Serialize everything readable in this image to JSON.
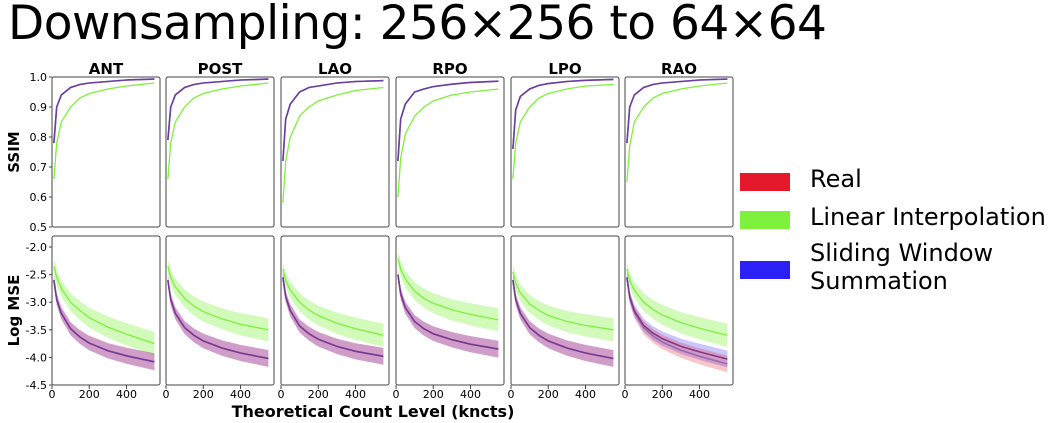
{
  "title": "Downsampling: 256×256 to 64×64",
  "colors": {
    "Real": "#e41a2c",
    "Linear Interpolation": "#7df13c",
    "Sliding Window Summation": "#2b20f5",
    "Overlap": "#6a3fa0"
  },
  "legend": [
    {
      "label_lines": [
        "Real"
      ],
      "color": "#e41a2c"
    },
    {
      "label_lines": [
        "Linear Interpolation"
      ],
      "color": "#7df13c"
    },
    {
      "label_lines": [
        "Sliding Window",
        "Summation"
      ],
      "color": "#2b20f5"
    }
  ],
  "chart_data": {
    "type": "line",
    "xlabel": "Theoretical Count Level (kncts)",
    "panels": [
      "ANT",
      "POST",
      "LAO",
      "RPO",
      "LPO",
      "RAO"
    ],
    "rows": [
      {
        "ylabel": "SSIM",
        "ylim": [
          0.5,
          1.0
        ],
        "yticks": [
          "0.5",
          "0.6",
          "0.7",
          "0.8",
          "0.9",
          "1.0"
        ],
        "x": [
          10,
          25,
          50,
          100,
          150,
          200,
          300,
          400,
          550
        ],
        "series": [
          {
            "name": "Linear Interpolation",
            "values_by_panel": {
              "ANT": [
                0.66,
                0.78,
                0.85,
                0.9,
                0.93,
                0.945,
                0.96,
                0.97,
                0.98
              ],
              "POST": [
                0.66,
                0.78,
                0.85,
                0.9,
                0.93,
                0.945,
                0.96,
                0.97,
                0.98
              ],
              "LAO": [
                0.58,
                0.72,
                0.8,
                0.87,
                0.9,
                0.92,
                0.94,
                0.955,
                0.965
              ],
              "RPO": [
                0.6,
                0.73,
                0.81,
                0.87,
                0.9,
                0.92,
                0.94,
                0.95,
                0.96
              ],
              "LPO": [
                0.66,
                0.78,
                0.85,
                0.9,
                0.93,
                0.945,
                0.96,
                0.97,
                0.975
              ],
              "RAO": [
                0.65,
                0.77,
                0.85,
                0.9,
                0.93,
                0.945,
                0.96,
                0.97,
                0.98
              ]
            }
          },
          {
            "name": "Sliding Window Summation",
            "values_by_panel": {
              "ANT": [
                0.78,
                0.9,
                0.94,
                0.965,
                0.975,
                0.98,
                0.985,
                0.99,
                0.993
              ],
              "POST": [
                0.79,
                0.9,
                0.94,
                0.965,
                0.975,
                0.98,
                0.985,
                0.99,
                0.993
              ],
              "LAO": [
                0.72,
                0.86,
                0.91,
                0.95,
                0.965,
                0.97,
                0.98,
                0.985,
                0.988
              ],
              "RPO": [
                0.72,
                0.86,
                0.91,
                0.95,
                0.96,
                0.968,
                0.976,
                0.982,
                0.986
              ],
              "LPO": [
                0.76,
                0.89,
                0.935,
                0.96,
                0.972,
                0.978,
                0.985,
                0.989,
                0.992
              ],
              "RAO": [
                0.78,
                0.9,
                0.94,
                0.965,
                0.975,
                0.98,
                0.985,
                0.99,
                0.993
              ]
            }
          },
          {
            "name": "Real",
            "values_by_panel": {
              "ANT": [
                0.78,
                0.9,
                0.94,
                0.965,
                0.975,
                0.98,
                0.985,
                0.99,
                0.993
              ],
              "POST": [
                0.79,
                0.9,
                0.94,
                0.965,
                0.975,
                0.98,
                0.985,
                0.99,
                0.993
              ],
              "LAO": [
                0.72,
                0.86,
                0.91,
                0.95,
                0.965,
                0.97,
                0.98,
                0.985,
                0.988
              ],
              "RPO": [
                0.72,
                0.86,
                0.91,
                0.95,
                0.96,
                0.968,
                0.976,
                0.982,
                0.986
              ],
              "LPO": [
                0.76,
                0.89,
                0.935,
                0.96,
                0.972,
                0.978,
                0.985,
                0.989,
                0.992
              ],
              "RAO": [
                0.78,
                0.9,
                0.94,
                0.965,
                0.975,
                0.98,
                0.985,
                0.99,
                0.993
              ]
            }
          }
        ]
      },
      {
        "ylabel": "Log MSE",
        "ylim": [
          -4.5,
          -1.8
        ],
        "yticks": [
          "-4.5",
          "-4.0",
          "-3.5",
          "-3.0",
          "-2.5",
          "-2.0"
        ],
        "xticks": [
          "0",
          "200",
          "400"
        ],
        "xlim": [
          0,
          580
        ],
        "x": [
          10,
          25,
          50,
          100,
          150,
          200,
          300,
          400,
          550
        ],
        "series": [
          {
            "name": "Linear Interpolation",
            "band": 0.22,
            "values_by_panel": {
              "ANT": [
                -2.35,
                -2.55,
                -2.75,
                -3.0,
                -3.15,
                -3.28,
                -3.45,
                -3.58,
                -3.75
              ],
              "POST": [
                -2.35,
                -2.55,
                -2.72,
                -2.93,
                -3.07,
                -3.17,
                -3.3,
                -3.4,
                -3.5
              ],
              "LAO": [
                -2.4,
                -2.6,
                -2.78,
                -3.0,
                -3.14,
                -3.24,
                -3.38,
                -3.48,
                -3.6
              ],
              "RPO": [
                -2.2,
                -2.4,
                -2.58,
                -2.8,
                -2.93,
                -3.02,
                -3.14,
                -3.22,
                -3.32
              ],
              "LPO": [
                -2.45,
                -2.65,
                -2.83,
                -3.03,
                -3.15,
                -3.24,
                -3.35,
                -3.42,
                -3.5
              ],
              "RAO": [
                -2.4,
                -2.6,
                -2.78,
                -3.0,
                -3.13,
                -3.23,
                -3.37,
                -3.47,
                -3.6
              ]
            }
          },
          {
            "name": "Sliding Window Summation",
            "band": 0.16,
            "values_by_panel": {
              "ANT": [
                -2.6,
                -2.95,
                -3.2,
                -3.48,
                -3.63,
                -3.74,
                -3.88,
                -3.97,
                -4.08
              ],
              "POST": [
                -2.6,
                -2.95,
                -3.2,
                -3.46,
                -3.6,
                -3.7,
                -3.83,
                -3.92,
                -4.02
              ],
              "LAO": [
                -2.55,
                -2.9,
                -3.15,
                -3.43,
                -3.57,
                -3.67,
                -3.8,
                -3.89,
                -3.98
              ],
              "RPO": [
                -2.5,
                -2.85,
                -3.1,
                -3.35,
                -3.48,
                -3.57,
                -3.68,
                -3.76,
                -3.85
              ],
              "LPO": [
                -2.6,
                -2.95,
                -3.2,
                -3.46,
                -3.6,
                -3.7,
                -3.83,
                -3.92,
                -4.02
              ],
              "RAO": [
                -2.55,
                -2.9,
                -3.15,
                -3.42,
                -3.56,
                -3.66,
                -3.8,
                -3.9,
                -4.03
              ]
            }
          },
          {
            "name": "Real",
            "band": 0.16,
            "values_by_panel": {
              "ANT": [
                -2.6,
                -2.95,
                -3.2,
                -3.48,
                -3.63,
                -3.74,
                -3.88,
                -3.97,
                -4.08
              ],
              "POST": [
                -2.6,
                -2.95,
                -3.2,
                -3.46,
                -3.6,
                -3.7,
                -3.83,
                -3.92,
                -4.02
              ],
              "LAO": [
                -2.55,
                -2.9,
                -3.15,
                -3.43,
                -3.57,
                -3.67,
                -3.8,
                -3.89,
                -3.98
              ],
              "RPO": [
                -2.5,
                -2.85,
                -3.1,
                -3.35,
                -3.48,
                -3.57,
                -3.68,
                -3.76,
                -3.85
              ],
              "LPO": [
                -2.6,
                -2.95,
                -3.2,
                -3.46,
                -3.6,
                -3.7,
                -3.83,
                -3.92,
                -4.02
              ],
              "RAO": [
                -2.55,
                -2.92,
                -3.18,
                -3.46,
                -3.61,
                -3.72,
                -3.87,
                -3.98,
                -4.12
              ]
            }
          }
        ]
      }
    ]
  }
}
